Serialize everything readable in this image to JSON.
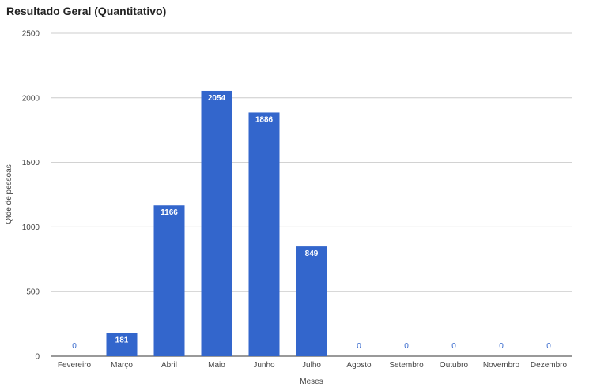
{
  "chart_data": {
    "type": "bar",
    "title": "Resultado Geral (Quantitativo)",
    "xlabel": "Meses",
    "ylabel": "Qtde de pessoas",
    "categories": [
      "Fevereiro",
      "Março",
      "Abril",
      "Maio",
      "Junho",
      "Julho",
      "Agosto",
      "Setembro",
      "Outubro",
      "Novembro",
      "Dezembro"
    ],
    "values": [
      0,
      181,
      1166,
      2054,
      1886,
      849,
      0,
      0,
      0,
      0,
      0
    ],
    "yticks": [
      "0",
      "500",
      "1000",
      "1500",
      "2000",
      "2500"
    ],
    "ylim": [
      0,
      2500
    ],
    "grid": true,
    "legend": "none",
    "bar_color": "#3366cc",
    "grid_color": "#cccccc",
    "baseline_color": "#333333"
  }
}
